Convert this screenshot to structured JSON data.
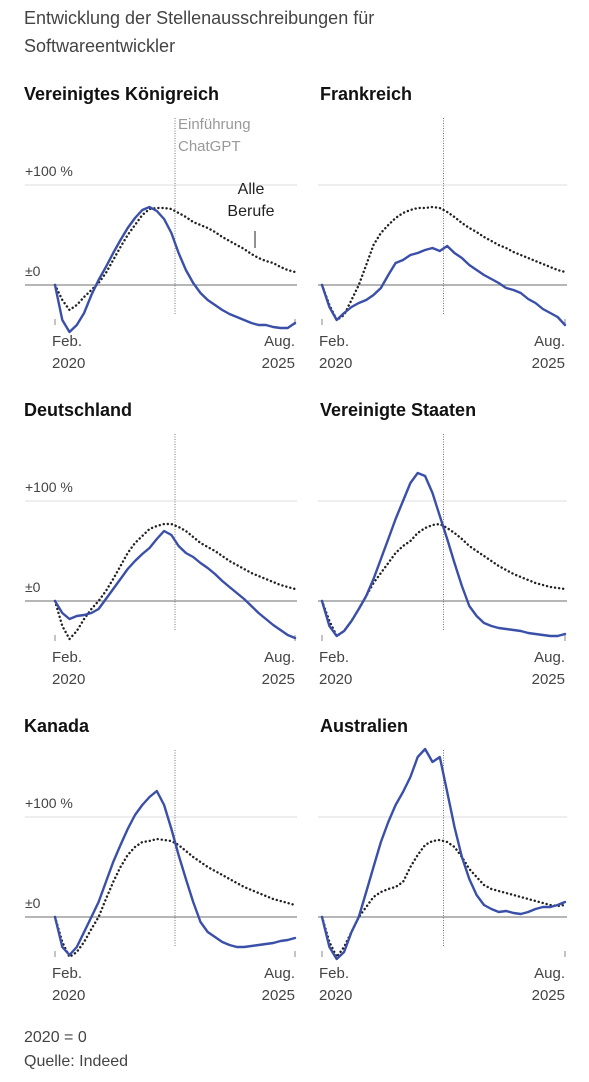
{
  "title": "Entwicklung der Stellenausschreibungen für Softwareentwickler",
  "notes": [
    "2020 = 0",
    "Quelle: Indeed"
  ],
  "chart_data": [
    {
      "type": "line",
      "title": "Vereinigtes Königreich",
      "x": [
        "2020-02",
        "2020-04",
        "2020-06",
        "2020-08",
        "2020-10",
        "2020-12",
        "2021-02",
        "2021-04",
        "2021-06",
        "2021-08",
        "2021-10",
        "2021-12",
        "2022-02",
        "2022-04",
        "2022-06",
        "2022-08",
        "2022-10",
        "2022-12",
        "2023-02",
        "2023-04",
        "2023-06",
        "2023-08",
        "2023-10",
        "2023-12",
        "2024-02",
        "2024-04",
        "2024-06",
        "2024-08",
        "2024-10",
        "2024-12",
        "2025-02",
        "2025-04",
        "2025-06",
        "2025-08"
      ],
      "series": [
        {
          "color": "#3a4fa8",
          "style": "solid",
          "values": [
            0,
            -35,
            -47,
            -40,
            -28,
            -10,
            5,
            18,
            32,
            45,
            57,
            67,
            75,
            78,
            74,
            66,
            52,
            32,
            15,
            2,
            -8,
            -15,
            -20,
            -25,
            -29,
            -32,
            -35,
            -38,
            -40,
            -40,
            -42,
            -43,
            -43,
            -38
          ]
        },
        {
          "name": "Alle Berufe",
          "color": "#222222",
          "style": "dotted",
          "values": [
            0,
            -15,
            -25,
            -20,
            -12,
            -5,
            2,
            12,
            25,
            38,
            50,
            60,
            70,
            76,
            77,
            77,
            76,
            72,
            68,
            63,
            60,
            57,
            53,
            48,
            44,
            40,
            36,
            31,
            27,
            24,
            22,
            18,
            15,
            13
          ]
        }
      ],
      "xlim": [
        "2020-02",
        "2025-08"
      ],
      "xticks": [
        {
          "value": "2020-02",
          "label": "Feb. 2020"
        },
        {
          "value": "2025-08",
          "label": "Aug. 2025"
        }
      ],
      "ylim": [
        -50,
        175
      ],
      "yticks": [
        {
          "value": 0,
          "label": "±0"
        },
        {
          "value": 100,
          "label": "+100 %"
        }
      ],
      "marker_x": "2022-11",
      "marker_label": "Einführung ChatGPT"
    },
    {
      "type": "line",
      "title": "Frankreich",
      "x": [
        "2020-02",
        "2020-04",
        "2020-06",
        "2020-08",
        "2020-10",
        "2020-12",
        "2021-02",
        "2021-04",
        "2021-06",
        "2021-08",
        "2021-10",
        "2021-12",
        "2022-02",
        "2022-04",
        "2022-06",
        "2022-08",
        "2022-10",
        "2022-12",
        "2023-02",
        "2023-04",
        "2023-06",
        "2023-08",
        "2023-10",
        "2023-12",
        "2024-02",
        "2024-04",
        "2024-06",
        "2024-08",
        "2024-10",
        "2024-12",
        "2025-02",
        "2025-04",
        "2025-06",
        "2025-08"
      ],
      "series": [
        {
          "color": "#3a4fa8",
          "style": "solid",
          "values": [
            0,
            -22,
            -35,
            -28,
            -22,
            -18,
            -15,
            -10,
            -3,
            10,
            22,
            25,
            30,
            32,
            35,
            37,
            34,
            39,
            32,
            27,
            20,
            15,
            10,
            6,
            2,
            -3,
            -5,
            -8,
            -14,
            -18,
            -24,
            -28,
            -32,
            -40
          ]
        },
        {
          "color": "#222222",
          "style": "dotted",
          "values": [
            0,
            -20,
            -35,
            -30,
            -15,
            0,
            20,
            40,
            52,
            60,
            67,
            72,
            75,
            77,
            77,
            78,
            77,
            73,
            68,
            62,
            57,
            53,
            48,
            44,
            40,
            37,
            33,
            30,
            27,
            24,
            21,
            18,
            15,
            13
          ]
        }
      ],
      "xlim": [
        "2020-02",
        "2025-08"
      ],
      "xticks": [
        {
          "value": "2020-02",
          "label": "Feb. 2020"
        },
        {
          "value": "2025-08",
          "label": "Aug. 2025"
        }
      ],
      "ylim": [
        -50,
        175
      ],
      "yticks": [
        0,
        100
      ],
      "marker_x": "2022-11"
    },
    {
      "type": "line",
      "title": "Deutschland",
      "x": [
        "2020-02",
        "2020-04",
        "2020-06",
        "2020-08",
        "2020-10",
        "2020-12",
        "2021-02",
        "2021-04",
        "2021-06",
        "2021-08",
        "2021-10",
        "2021-12",
        "2022-02",
        "2022-04",
        "2022-06",
        "2022-08",
        "2022-10",
        "2022-12",
        "2023-02",
        "2023-04",
        "2023-06",
        "2023-08",
        "2023-10",
        "2023-12",
        "2024-02",
        "2024-04",
        "2024-06",
        "2024-08",
        "2024-10",
        "2024-12",
        "2025-02",
        "2025-04",
        "2025-06",
        "2025-08"
      ],
      "series": [
        {
          "color": "#3a4fa8",
          "style": "solid",
          "values": [
            0,
            -12,
            -18,
            -15,
            -14,
            -12,
            -8,
            2,
            12,
            22,
            32,
            40,
            47,
            53,
            62,
            70,
            66,
            55,
            48,
            44,
            38,
            33,
            27,
            20,
            14,
            8,
            2,
            -5,
            -12,
            -18,
            -24,
            -29,
            -34,
            -37
          ]
        },
        {
          "color": "#222222",
          "style": "dotted",
          "values": [
            0,
            -25,
            -38,
            -30,
            -18,
            -8,
            0,
            10,
            22,
            35,
            48,
            58,
            65,
            72,
            75,
            77,
            77,
            74,
            70,
            64,
            58,
            54,
            50,
            45,
            40,
            36,
            32,
            28,
            25,
            22,
            19,
            16,
            14,
            12
          ]
        }
      ],
      "xlim": [
        "2020-02",
        "2025-08"
      ],
      "xticks": [
        {
          "value": "2020-02",
          "label": "Feb. 2020"
        },
        {
          "value": "2025-08",
          "label": "Aug. 2025"
        }
      ],
      "ylim": [
        -50,
        175
      ],
      "yticks": [
        {
          "value": 0,
          "label": "±0"
        },
        {
          "value": 100,
          "label": "+100 %"
        }
      ],
      "marker_x": "2022-11"
    },
    {
      "type": "line",
      "title": "Vereinigte Staaten",
      "x": [
        "2020-02",
        "2020-04",
        "2020-06",
        "2020-08",
        "2020-10",
        "2020-12",
        "2021-02",
        "2021-04",
        "2021-06",
        "2021-08",
        "2021-10",
        "2021-12",
        "2022-02",
        "2022-04",
        "2022-06",
        "2022-08",
        "2022-10",
        "2022-12",
        "2023-02",
        "2023-04",
        "2023-06",
        "2023-08",
        "2023-10",
        "2023-12",
        "2024-02",
        "2024-04",
        "2024-06",
        "2024-08",
        "2024-10",
        "2024-12",
        "2025-02",
        "2025-04",
        "2025-06",
        "2025-08"
      ],
      "series": [
        {
          "color": "#3a4fa8",
          "style": "solid",
          "values": [
            0,
            -25,
            -35,
            -30,
            -20,
            -8,
            5,
            22,
            42,
            62,
            82,
            100,
            118,
            128,
            125,
            108,
            85,
            62,
            38,
            15,
            -5,
            -15,
            -22,
            -25,
            -27,
            -28,
            -29,
            -30,
            -32,
            -33,
            -34,
            -35,
            -35,
            -33
          ]
        },
        {
          "color": "#222222",
          "style": "dotted",
          "values": [
            0,
            -20,
            -35,
            -30,
            -20,
            -8,
            5,
            18,
            28,
            38,
            48,
            55,
            60,
            68,
            73,
            76,
            77,
            73,
            68,
            62,
            55,
            50,
            45,
            40,
            35,
            31,
            27,
            24,
            21,
            18,
            16,
            14,
            13,
            12
          ]
        }
      ],
      "xlim": [
        "2020-02",
        "2025-08"
      ],
      "xticks": [
        {
          "value": "2020-02",
          "label": "Feb. 2020"
        },
        {
          "value": "2025-08",
          "label": "Aug. 2025"
        }
      ],
      "ylim": [
        -50,
        175
      ],
      "yticks": [
        0,
        100
      ],
      "marker_x": "2022-11"
    },
    {
      "type": "line",
      "title": "Kanada",
      "x": [
        "2020-02",
        "2020-04",
        "2020-06",
        "2020-08",
        "2020-10",
        "2020-12",
        "2021-02",
        "2021-04",
        "2021-06",
        "2021-08",
        "2021-10",
        "2021-12",
        "2022-02",
        "2022-04",
        "2022-06",
        "2022-08",
        "2022-10",
        "2022-12",
        "2023-02",
        "2023-04",
        "2023-06",
        "2023-08",
        "2023-10",
        "2023-12",
        "2024-02",
        "2024-04",
        "2024-06",
        "2024-08",
        "2024-10",
        "2024-12",
        "2025-02",
        "2025-04",
        "2025-06",
        "2025-08"
      ],
      "series": [
        {
          "color": "#3a4fa8",
          "style": "solid",
          "values": [
            0,
            -30,
            -38,
            -30,
            -15,
            0,
            15,
            35,
            55,
            72,
            88,
            102,
            112,
            120,
            126,
            112,
            88,
            62,
            38,
            15,
            -5,
            -15,
            -20,
            -25,
            -28,
            -30,
            -30,
            -29,
            -28,
            -27,
            -26,
            -24,
            -23,
            -21
          ]
        },
        {
          "color": "#222222",
          "style": "dotted",
          "values": [
            0,
            -25,
            -40,
            -35,
            -25,
            -12,
            0,
            18,
            35,
            50,
            62,
            70,
            75,
            76,
            78,
            77,
            76,
            72,
            66,
            60,
            55,
            50,
            46,
            42,
            38,
            34,
            30,
            27,
            24,
            21,
            18,
            16,
            14,
            12
          ]
        }
      ],
      "xlim": [
        "2020-02",
        "2025-08"
      ],
      "xticks": [
        {
          "value": "2020-02",
          "label": "Feb. 2020"
        },
        {
          "value": "2025-08",
          "label": "Aug. 2025"
        }
      ],
      "ylim": [
        -50,
        175
      ],
      "yticks": [
        {
          "value": 0,
          "label": "±0"
        },
        {
          "value": 100,
          "label": "+100 %"
        }
      ],
      "marker_x": "2022-11"
    },
    {
      "type": "line",
      "title": "Australien",
      "x": [
        "2020-02",
        "2020-04",
        "2020-06",
        "2020-08",
        "2020-10",
        "2020-12",
        "2021-02",
        "2021-04",
        "2021-06",
        "2021-08",
        "2021-10",
        "2021-12",
        "2022-02",
        "2022-04",
        "2022-06",
        "2022-08",
        "2022-10",
        "2022-12",
        "2023-02",
        "2023-04",
        "2023-06",
        "2023-08",
        "2023-10",
        "2023-12",
        "2024-02",
        "2024-04",
        "2024-06",
        "2024-08",
        "2024-10",
        "2024-12",
        "2025-02",
        "2025-04",
        "2025-06",
        "2025-08"
      ],
      "series": [
        {
          "color": "#3a4fa8",
          "style": "solid",
          "values": [
            0,
            -30,
            -42,
            -35,
            -15,
            0,
            25,
            50,
            75,
            95,
            112,
            125,
            140,
            160,
            168,
            155,
            160,
            125,
            90,
            60,
            38,
            22,
            12,
            8,
            5,
            6,
            4,
            3,
            5,
            8,
            10,
            10,
            12,
            15
          ]
        },
        {
          "color": "#222222",
          "style": "dotted",
          "values": [
            0,
            -25,
            -40,
            -30,
            -15,
            0,
            10,
            20,
            25,
            28,
            30,
            35,
            50,
            62,
            72,
            76,
            77,
            75,
            70,
            60,
            48,
            40,
            32,
            28,
            26,
            24,
            22,
            20,
            18,
            16,
            14,
            12,
            11,
            12
          ]
        }
      ],
      "xlim": [
        "2020-02",
        "2025-08"
      ],
      "xticks": [
        {
          "value": "2020-02",
          "label": "Feb. 2020"
        },
        {
          "value": "2025-08",
          "label": "Aug. 2025"
        }
      ],
      "ylim": [
        -50,
        175
      ],
      "yticks": [
        0,
        100
      ],
      "marker_x": "2022-11"
    }
  ]
}
